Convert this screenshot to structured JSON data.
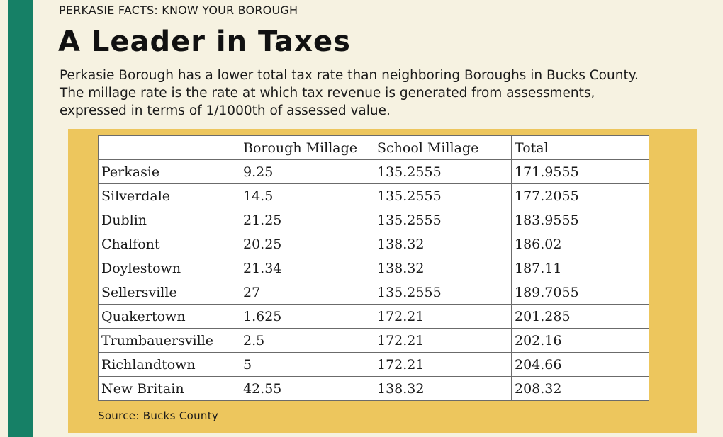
{
  "kicker": "PERKASIE FACTS: KNOW YOUR BOROUGH",
  "headline": "A Leader in Taxes",
  "intro": {
    "line1": "Perkasie Borough has a lower total tax rate than neighboring Boroughs in Bucks County.",
    "line2": "The millage rate is the rate at which tax revenue is generated from assessments,",
    "line3": "expressed in terms of 1/1000th of assessed value."
  },
  "colors": {
    "accent_bar": "#168066",
    "panel": "#edc65d",
    "background": "#f6f2e1"
  },
  "table": {
    "headers": [
      "",
      "Borough Millage",
      "School Millage",
      "Total"
    ],
    "rows": [
      [
        "Perkasie",
        "9.25",
        "135.2555",
        "171.9555"
      ],
      [
        "Silverdale",
        "14.5",
        "135.2555",
        "177.2055"
      ],
      [
        "Dublin",
        "21.25",
        "135.2555",
        "183.9555"
      ],
      [
        "Chalfont",
        "20.25",
        "138.32",
        "186.02"
      ],
      [
        "Doylestown",
        "21.34",
        "138.32",
        "187.11"
      ],
      [
        "Sellersville",
        "27",
        "135.2555",
        "189.7055"
      ],
      [
        "Quakertown",
        "1.625",
        "172.21",
        "201.285"
      ],
      [
        "Trumbauersville",
        "2.5",
        "172.21",
        "202.16"
      ],
      [
        "Richlandtown",
        "5",
        "172.21",
        "204.66"
      ],
      [
        "New Britain",
        "42.55",
        "138.32",
        "208.32"
      ]
    ]
  },
  "source": "Source: Bucks County"
}
